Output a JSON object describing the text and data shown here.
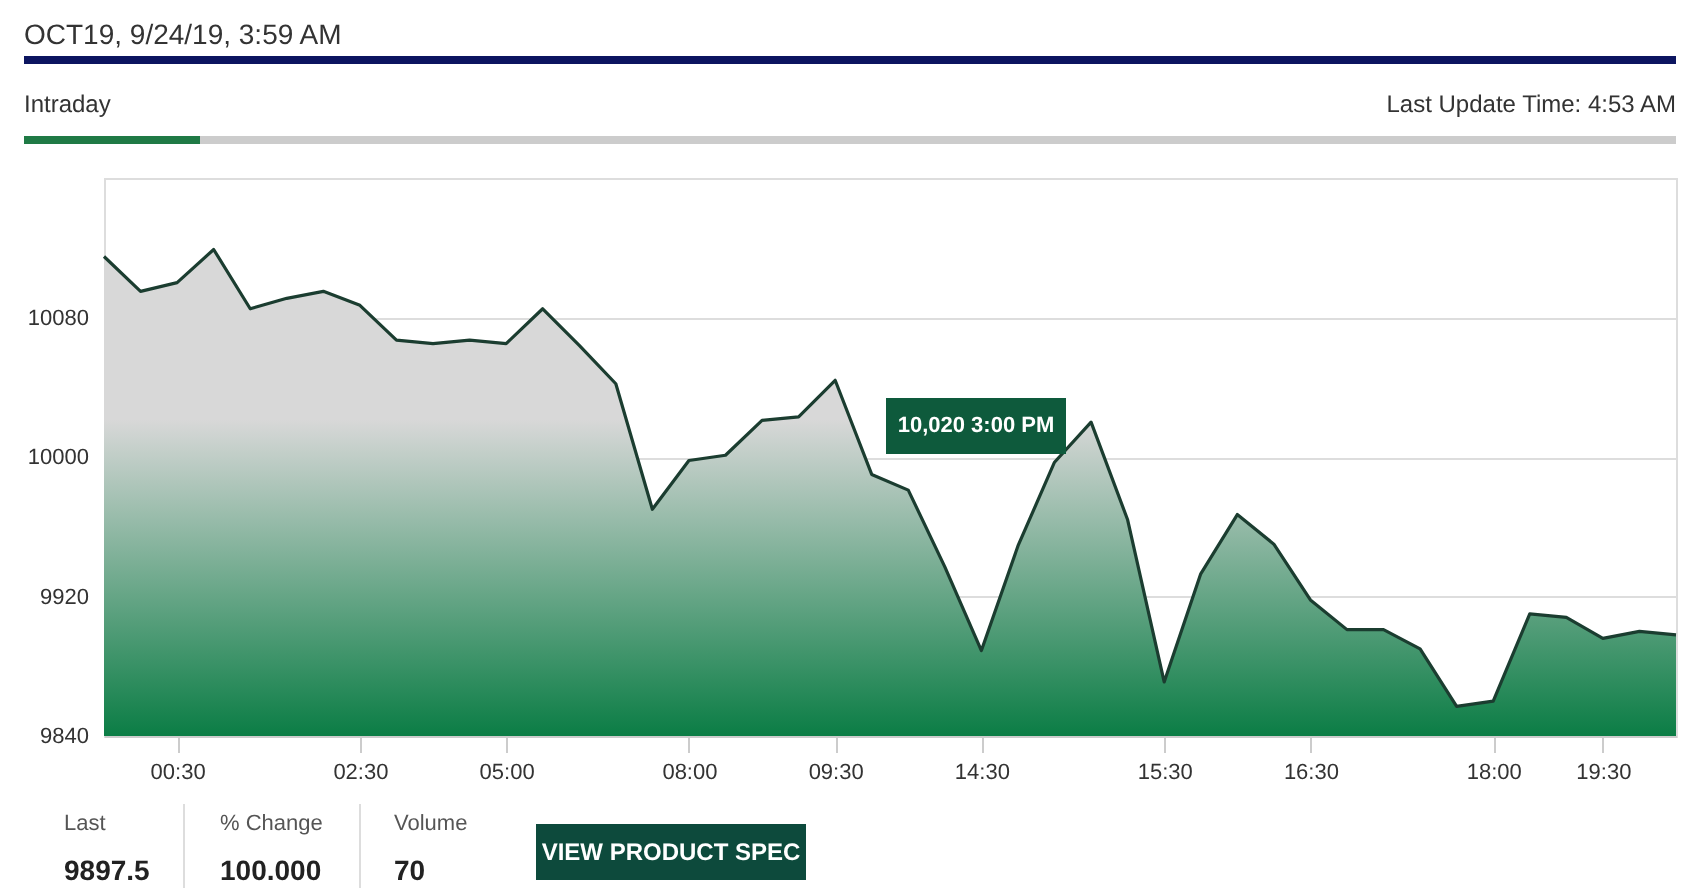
{
  "chart_data": {
    "type": "area",
    "title": "OCT19, 9/24/19, 3:59 AM",
    "categories": [
      null,
      null,
      "00:30",
      null,
      null,
      null,
      null,
      "02:30",
      null,
      null,
      null,
      "05:00",
      null,
      null,
      null,
      null,
      "08:00",
      null,
      null,
      null,
      "09:30",
      null,
      null,
      null,
      "14:30",
      null,
      null,
      null,
      null,
      "15:30",
      null,
      null,
      null,
      "16:30",
      null,
      null,
      null,
      null,
      "18:00",
      null,
      null,
      "19:30",
      null,
      null
    ],
    "series": [
      {
        "color": "#1b3d30",
        "values": [
          10115,
          10095,
          10100,
          10119,
          10085,
          10091,
          10095,
          10087,
          10067,
          10065,
          10067,
          10065,
          10085,
          10064,
          10042,
          9970,
          9998,
          10001,
          10021,
          10023,
          10044,
          9990,
          9981,
          9937,
          9889,
          9949,
          9997,
          10020,
          9964,
          9871,
          9933,
          9967,
          9950,
          9918,
          9901,
          9901,
          9890,
          9857,
          9860,
          9910,
          9908,
          9896,
          9900,
          9898
        ]
      }
    ],
    "ylim": [
      9840,
      10160
    ],
    "yticks": [
      9840,
      9920,
      10000,
      10080
    ],
    "grid": "y",
    "annotations": [
      "Intraday",
      "Last Update Time: 4:53 AM",
      "Last",
      "9897.5",
      "% Change",
      "100.000",
      "Volume",
      "70",
      "VIEW PRODUCT SPEC",
      "10,020 3:00 PM"
    ]
  }
}
